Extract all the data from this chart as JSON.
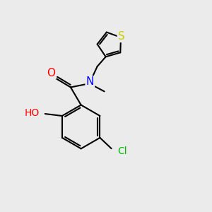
{
  "background_color": "#ebebeb",
  "bond_color": "#000000",
  "bond_width": 1.5,
  "atom_colors": {
    "O": "#ff0000",
    "N": "#0000ff",
    "S": "#cccc00",
    "Cl": "#00bb00",
    "C": "#000000"
  },
  "font_size": 10
}
